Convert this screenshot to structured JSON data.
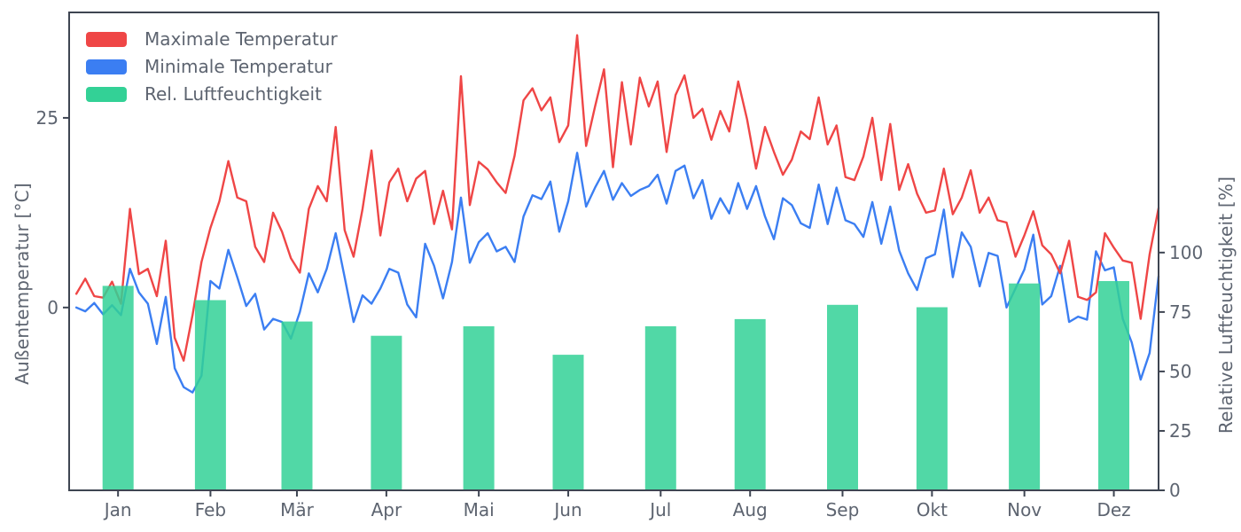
{
  "chart_data": {
    "type": "mixed",
    "title": "",
    "legend_position": "upper-left",
    "text_color": "#5d6470",
    "spine_color": "#3e4552",
    "background": "#ffffff",
    "x_axis": {
      "months": [
        "Jan",
        "Feb",
        "Mär",
        "Apr",
        "Mai",
        "Jun",
        "Jul",
        "Aug",
        "Sep",
        "Okt",
        "Nov",
        "Dez"
      ],
      "month_mid_days": [
        15,
        46,
        75,
        105,
        136,
        166,
        197,
        227,
        258,
        288,
        319,
        349
      ],
      "day_range": [
        -1.4,
        364
      ]
    },
    "left_axis": {
      "label": "Außentemperatur [°C]",
      "ticks": [
        0,
        25
      ],
      "range": [
        -24.1,
        38.9
      ]
    },
    "right_axis": {
      "label": "Relative Luftfeuchtigkeit [%]",
      "ticks": [
        0,
        25,
        50,
        75,
        100
      ],
      "range": [
        0,
        201
      ]
    },
    "sample_step_days": 3,
    "series": [
      {
        "name": "Maximale Temperatur",
        "type": "line",
        "axis": "temp",
        "color": "#ef4646",
        "start_day": 1,
        "values": [
          1.8,
          3.8,
          1.5,
          1.3,
          3.4,
          0.5,
          13.0,
          4.4,
          5.1,
          1.5,
          8.8,
          -4.0,
          -7.0,
          -1.0,
          6.0,
          10.5,
          14.0,
          19.3,
          14.5,
          14.0,
          8.0,
          6.0,
          12.5,
          10.0,
          6.5,
          4.6,
          13.0,
          16.0,
          14.0,
          23.8,
          10.2,
          6.7,
          13.0,
          20.7,
          9.5,
          16.5,
          18.3,
          14.0,
          17.0,
          18.0,
          11.0,
          15.4,
          10.3,
          30.5,
          13.5,
          19.2,
          18.2,
          16.5,
          15.1,
          20.0,
          27.3,
          28.9,
          26.0,
          27.7,
          21.8,
          24.0,
          35.9,
          21.3,
          26.5,
          31.4,
          18.5,
          29.7,
          21.5,
          30.3,
          26.5,
          29.8,
          20.5,
          28.0,
          30.6,
          25.0,
          26.2,
          22.1,
          25.9,
          23.2,
          29.8,
          24.8,
          18.3,
          23.8,
          20.5,
          17.5,
          19.5,
          23.2,
          22.2,
          27.7,
          21.5,
          24.0,
          17.2,
          16.8,
          19.9,
          25.0,
          16.8,
          24.2,
          15.5,
          18.9,
          15.0,
          12.5,
          12.8,
          18.3,
          12.3,
          14.5,
          18.1,
          12.5,
          14.5,
          11.5,
          11.2,
          6.7,
          9.5,
          12.7,
          8.2,
          7.0,
          4.5,
          8.8,
          1.4,
          1.0,
          2.0,
          9.8,
          7.9,
          6.2,
          5.9,
          -1.5,
          7.0,
          13.1
        ]
      },
      {
        "name": "Minimale Temperatur",
        "type": "line",
        "axis": "temp",
        "color": "#3b7ef2",
        "start_day": 1,
        "values": [
          0.0,
          -0.5,
          0.6,
          -0.9,
          0.3,
          -1.0,
          5.1,
          2.0,
          0.5,
          -4.8,
          1.4,
          -8.0,
          -10.5,
          -11.2,
          -9.0,
          3.5,
          2.5,
          7.6,
          4.0,
          0.2,
          1.8,
          -2.9,
          -1.5,
          -1.9,
          -4.1,
          -0.6,
          4.5,
          2.0,
          5.1,
          9.8,
          4.0,
          -1.9,
          1.6,
          0.5,
          2.5,
          5.1,
          4.6,
          0.4,
          -1.3,
          8.4,
          5.5,
          1.2,
          6.0,
          14.5,
          5.9,
          8.6,
          9.8,
          7.4,
          8.0,
          6.0,
          12.0,
          14.8,
          14.3,
          16.6,
          10.0,
          14.0,
          20.4,
          13.3,
          15.8,
          18.0,
          14.2,
          16.4,
          14.7,
          15.5,
          16.0,
          17.5,
          13.7,
          18.0,
          18.7,
          14.4,
          16.8,
          11.7,
          14.4,
          12.4,
          16.4,
          13.0,
          16.0,
          12.0,
          9.0,
          14.4,
          13.5,
          11.1,
          10.5,
          16.2,
          11.0,
          15.8,
          11.5,
          11.0,
          9.3,
          13.9,
          8.4,
          13.3,
          7.5,
          4.5,
          2.3,
          6.5,
          7.0,
          12.9,
          4.0,
          9.9,
          8.0,
          2.8,
          7.2,
          6.8,
          0.0,
          2.5,
          5.0,
          9.6,
          0.4,
          1.5,
          5.5,
          -1.9,
          -1.2,
          -1.6,
          7.4,
          4.9,
          5.3,
          -1.5,
          -4.6,
          -9.5,
          -6.0,
          4.1
        ]
      },
      {
        "name": "Rel. Luftfeuchtigkeit",
        "type": "bar",
        "axis": "humidity",
        "color": "#33d196",
        "bar_alpha": 0.85,
        "categories": [
          "Jan",
          "Feb",
          "Mär",
          "Apr",
          "Mai",
          "Jun",
          "Jul",
          "Aug",
          "Sep",
          "Okt",
          "Nov",
          "Dez"
        ],
        "values": [
          86,
          80,
          71,
          65,
          69,
          57,
          69,
          72,
          78,
          77,
          87,
          88
        ]
      }
    ]
  }
}
